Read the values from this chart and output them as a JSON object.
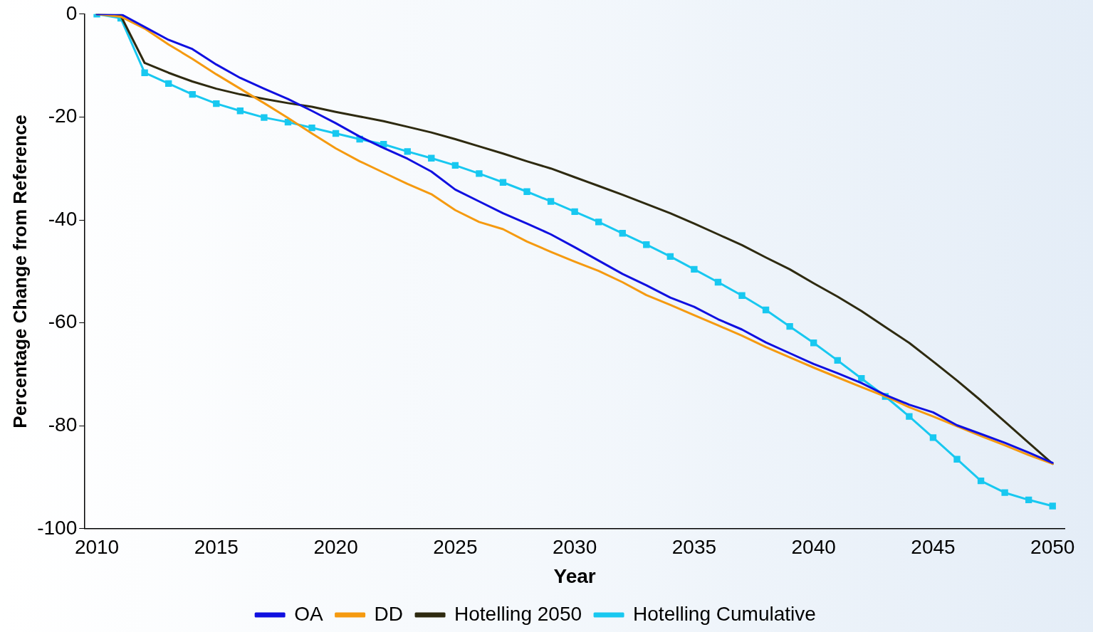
{
  "chart_data": {
    "type": "line",
    "xlabel": "Year",
    "ylabel": "Percentage Change from Reference",
    "x": [
      2010,
      2011,
      2012,
      2013,
      2014,
      2015,
      2016,
      2017,
      2018,
      2019,
      2020,
      2021,
      2022,
      2023,
      2024,
      2025,
      2026,
      2027,
      2028,
      2029,
      2030,
      2031,
      2032,
      2033,
      2034,
      2035,
      2036,
      2037,
      2038,
      2039,
      2040,
      2041,
      2042,
      2043,
      2044,
      2045,
      2046,
      2047,
      2048,
      2049,
      2050
    ],
    "series": [
      {
        "name": "OA",
        "color": "#1010e0",
        "marker": "none",
        "values": [
          0,
          0,
          -2.5,
          -5,
          -6.8,
          -9.8,
          -12.4,
          -14.5,
          -16.5,
          -18.8,
          -21.2,
          -23.8,
          -26,
          -28.1,
          -30.6,
          -34.1,
          -36.4,
          -38.7,
          -40.7,
          -42.8,
          -45.3,
          -47.9,
          -50.5,
          -52.7,
          -55.1,
          -56.9,
          -59.3,
          -61.3,
          -63.8,
          -65.9,
          -68,
          -69.8,
          -71.7,
          -74,
          -75.9,
          -77.4,
          -79.9,
          -81.6,
          -83.3,
          -85.2,
          -87.2
        ]
      },
      {
        "name": "DD",
        "color": "#f59a10",
        "marker": "none",
        "values": [
          0,
          -0.5,
          -2.8,
          -5.9,
          -8.7,
          -11.7,
          -14.5,
          -17.3,
          -20.2,
          -23.2,
          -26.1,
          -28.6,
          -30.8,
          -33,
          -35,
          -38.1,
          -40.4,
          -41.8,
          -44.2,
          -46.2,
          -48.1,
          -49.9,
          -52.1,
          -54.6,
          -56.5,
          -58.5,
          -60.5,
          -62.5,
          -64.7,
          -66.7,
          -68.7,
          -70.6,
          -72.5,
          -74.3,
          -76.4,
          -78.2,
          -80.1,
          -82,
          -83.8,
          -85.7,
          -87.4
        ]
      },
      {
        "name": "Hotelling 2050",
        "color": "#2e2a10",
        "marker": "none",
        "values": [
          0,
          -0.3,
          -9.5,
          -11.4,
          -13.1,
          -14.5,
          -15.6,
          -16.5,
          -17.3,
          -18,
          -19,
          -19.9,
          -20.8,
          -21.9,
          -23,
          -24.3,
          -25.7,
          -27.1,
          -28.6,
          -30,
          -31.7,
          -33.4,
          -35.1,
          -36.9,
          -38.7,
          -40.7,
          -42.8,
          -44.9,
          -47.3,
          -49.6,
          -52.3,
          -54.9,
          -57.7,
          -60.8,
          -63.9,
          -67.5,
          -71.2,
          -75.1,
          -79.2,
          -83.3,
          -87.4
        ]
      },
      {
        "name": "Hotelling Cumulative",
        "color": "#18c8f0",
        "marker": "square",
        "values": [
          0,
          -0.8,
          -11.4,
          -13.5,
          -15.6,
          -17.4,
          -18.8,
          -20.1,
          -21,
          -22.1,
          -23.2,
          -24.3,
          -25.3,
          -26.7,
          -28,
          -29.4,
          -31,
          -32.7,
          -34.5,
          -36.4,
          -38.4,
          -40.4,
          -42.6,
          -44.8,
          -47.1,
          -49.6,
          -52.1,
          -54.7,
          -57.5,
          -60.7,
          -63.9,
          -67.3,
          -70.8,
          -74.3,
          -78.2,
          -82.3,
          -86.5,
          -90.7,
          -93,
          -94.4,
          -95.6
        ]
      }
    ],
    "xlim": [
      2009.5,
      2050.5
    ],
    "xticks": [
      2010,
      2015,
      2020,
      2025,
      2030,
      2035,
      2040,
      2045,
      2050
    ],
    "ylim": [
      -100,
      0
    ],
    "yticks": [
      -100,
      -80,
      -60,
      -40,
      -20,
      0
    ],
    "grid": false,
    "legend": "bottom",
    "line_style": "solid"
  }
}
